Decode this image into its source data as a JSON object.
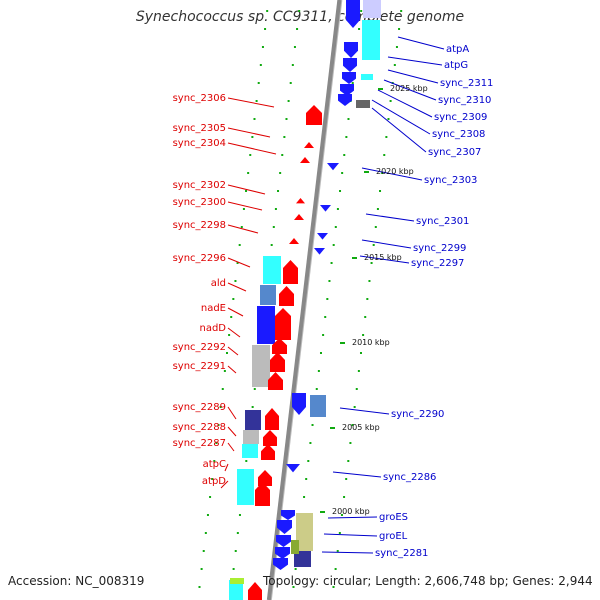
{
  "title": "Synechococcus sp. CC9311, complete genome",
  "accession": "Accession: NC_008319",
  "topology": "Topology: circular; Length: 2,606,748 bp; Genes: 2,944",
  "colors": {
    "left_label": "#dd0000",
    "right_label": "#0000cc",
    "backbone": "#888888",
    "tick": "#11aa11"
  },
  "kbp_ticks": [
    "2025 kbp",
    "2020 kbp",
    "2015 kbp",
    "2010 kbp",
    "2005 kbp",
    "2000 kbp"
  ],
  "left_genes": [
    "sync_2306",
    "sync_2305",
    "sync_2304",
    "sync_2302",
    "sync_2300",
    "sync_2298",
    "sync_2296",
    "ald",
    "nadE",
    "nadD",
    "sync_2292",
    "sync_2291",
    "sync_2289",
    "sync_2288",
    "sync_2287",
    "atpC",
    "atpD"
  ],
  "right_genes": [
    "atpA",
    "atpG",
    "sync_2311",
    "sync_2310",
    "sync_2309",
    "sync_2308",
    "sync_2307",
    "sync_2303",
    "sync_2301",
    "sync_2299",
    "sync_2297",
    "sync_2290",
    "sync_2286",
    "groES",
    "groEL",
    "sync_2281"
  ]
}
